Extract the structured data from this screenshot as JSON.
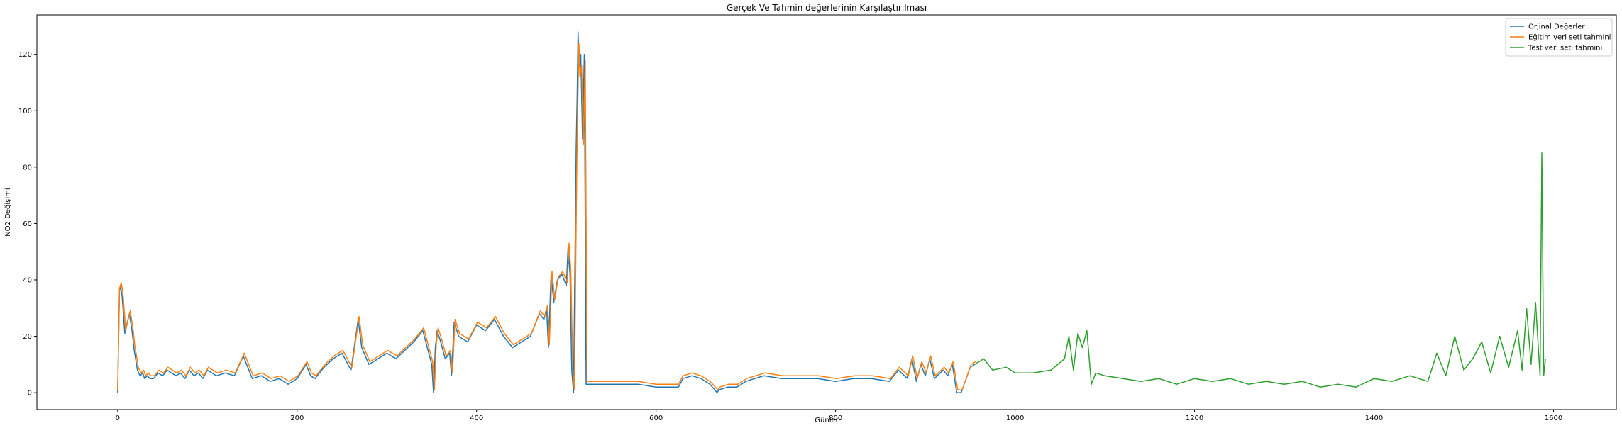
{
  "chart_data": {
    "type": "line",
    "title": "Gerçek Ve Tahmin değerlerinin Karşılaştırılması",
    "xlabel": "Günler",
    "ylabel": "NO2 Değişimi",
    "xlim": [
      -90,
      1670
    ],
    "ylim": [
      -6,
      134
    ],
    "xticks": [
      0,
      200,
      400,
      600,
      800,
      1000,
      1200,
      1400,
      1600
    ],
    "yticks": [
      0,
      20,
      40,
      60,
      80,
      100,
      120
    ],
    "grid": false,
    "legend_position": "top-right",
    "series": [
      {
        "name": "Orjinal Değerler",
        "color": "#1f77b4",
        "x": [
          0,
          2,
          3,
          5,
          8,
          10,
          13,
          16,
          18,
          20,
          22,
          25,
          28,
          30,
          33,
          36,
          40,
          45,
          50,
          55,
          60,
          65,
          70,
          75,
          80,
          85,
          90,
          95,
          100,
          110,
          120,
          130,
          140,
          145,
          150,
          160,
          170,
          180,
          190,
          200,
          210,
          215,
          220,
          230,
          240,
          250,
          260,
          268,
          272,
          280,
          290,
          300,
          310,
          320,
          330,
          340,
          345,
          350,
          352,
          354,
          356,
          360,
          365,
          370,
          372,
          375,
          380,
          390,
          400,
          410,
          420,
          430,
          440,
          450,
          460,
          470,
          475,
          478,
          480,
          483,
          486,
          490,
          495,
          500,
          502,
          504,
          506,
          508,
          510,
          511,
          512,
          513,
          514,
          516,
          518,
          520,
          522,
          530,
          580,
          600,
          620,
          625,
          630,
          640,
          650,
          660,
          668,
          670,
          680,
          690,
          700,
          710,
          720,
          740,
          760,
          780,
          800,
          820,
          840,
          860,
          870,
          880,
          885,
          890,
          895,
          900,
          905,
          910,
          920,
          925,
          930,
          935,
          940,
          950,
          955
        ],
        "y": [
          0,
          36,
          38,
          34,
          21,
          24,
          28,
          22,
          16,
          12,
          8,
          6,
          7,
          5,
          6,
          5,
          5,
          7,
          6,
          8,
          7,
          6,
          7,
          5,
          8,
          6,
          7,
          5,
          8,
          6,
          7,
          6,
          13,
          9,
          5,
          6,
          4,
          5,
          3,
          5,
          10,
          6,
          5,
          9,
          12,
          14,
          8,
          26,
          16,
          10,
          12,
          14,
          12,
          15,
          18,
          22,
          16,
          10,
          0,
          16,
          22,
          18,
          12,
          14,
          6,
          25,
          20,
          18,
          24,
          22,
          26,
          20,
          16,
          18,
          20,
          28,
          26,
          30,
          16,
          42,
          32,
          40,
          42,
          38,
          52,
          42,
          8,
          0,
          60,
          88,
          105,
          128,
          118,
          120,
          90,
          120,
          3,
          3,
          3,
          2,
          2,
          2,
          5,
          6,
          5,
          3,
          0,
          1,
          2,
          2,
          4,
          5,
          6,
          5,
          5,
          5,
          4,
          5,
          5,
          4,
          8,
          5,
          12,
          4,
          10,
          6,
          12,
          5,
          8,
          6,
          10,
          0,
          0,
          9,
          10
        ]
      },
      {
        "name": "Eğitim veri seti tahmini",
        "color": "#ff7f0e",
        "x": [
          0,
          2,
          4,
          6,
          9,
          11,
          14,
          17,
          19,
          21,
          23,
          26,
          29,
          31,
          34,
          37,
          41,
          46,
          51,
          56,
          61,
          66,
          71,
          76,
          81,
          86,
          91,
          96,
          101,
          111,
          121,
          131,
          141,
          146,
          151,
          161,
          171,
          181,
          191,
          201,
          211,
          216,
          221,
          231,
          241,
          251,
          261,
          269,
          273,
          281,
          291,
          301,
          311,
          321,
          331,
          341,
          346,
          351,
          353,
          355,
          357,
          361,
          366,
          371,
          373,
          376,
          381,
          391,
          401,
          411,
          421,
          431,
          441,
          451,
          461,
          471,
          476,
          479,
          481,
          484,
          487,
          491,
          496,
          501,
          503,
          505,
          507,
          509,
          511,
          512,
          513,
          514,
          515,
          517,
          519,
          521,
          523,
          530,
          580,
          600,
          620,
          625,
          630,
          640,
          650,
          660,
          669,
          671,
          681,
          691,
          701,
          711,
          721,
          741,
          761,
          781,
          801,
          821,
          841,
          861,
          871,
          881,
          886,
          891,
          896,
          901,
          906,
          911,
          921,
          926,
          931,
          936,
          941,
          951,
          956
        ],
        "y": [
          1,
          37,
          39,
          35,
          22,
          25,
          29,
          23,
          17,
          13,
          9,
          7,
          8,
          6,
          7,
          6,
          6,
          8,
          7,
          9,
          8,
          7,
          8,
          6,
          9,
          7,
          8,
          6,
          9,
          7,
          8,
          7,
          14,
          10,
          6,
          7,
          5,
          6,
          4,
          6,
          11,
          7,
          6,
          10,
          13,
          15,
          9,
          27,
          17,
          11,
          13,
          15,
          13,
          16,
          19,
          23,
          17,
          11,
          1,
          17,
          23,
          19,
          13,
          15,
          7,
          26,
          21,
          19,
          25,
          23,
          27,
          21,
          17,
          19,
          21,
          29,
          27,
          31,
          17,
          43,
          33,
          41,
          43,
          39,
          53,
          43,
          9,
          1,
          62,
          90,
          108,
          124,
          112,
          116,
          88,
          118,
          4,
          4,
          4,
          3,
          3,
          3,
          6,
          7,
          6,
          4,
          1,
          2,
          3,
          3,
          5,
          6,
          7,
          6,
          6,
          6,
          5,
          6,
          6,
          5,
          9,
          6,
          13,
          5,
          11,
          7,
          13,
          6,
          9,
          7,
          11,
          1,
          1,
          10,
          11
        ]
      },
      {
        "name": "Test veri seti tahmini",
        "color": "#2ca02c",
        "x": [
          955,
          965,
          975,
          990,
          1000,
          1020,
          1040,
          1055,
          1060,
          1065,
          1070,
          1075,
          1080,
          1085,
          1090,
          1100,
          1120,
          1140,
          1160,
          1180,
          1200,
          1220,
          1240,
          1260,
          1280,
          1300,
          1320,
          1340,
          1360,
          1380,
          1400,
          1420,
          1440,
          1460,
          1470,
          1480,
          1490,
          1500,
          1510,
          1520,
          1530,
          1540,
          1550,
          1560,
          1565,
          1570,
          1575,
          1580,
          1585,
          1587,
          1589,
          1591
        ],
        "y": [
          10,
          12,
          8,
          9,
          7,
          7,
          8,
          12,
          20,
          8,
          21,
          16,
          22,
          3,
          7,
          6,
          5,
          4,
          5,
          3,
          5,
          4,
          5,
          3,
          4,
          3,
          4,
          2,
          3,
          2,
          5,
          4,
          6,
          4,
          14,
          6,
          20,
          8,
          12,
          18,
          7,
          20,
          9,
          22,
          8,
          30,
          10,
          32,
          6,
          85,
          6,
          12
        ]
      }
    ]
  }
}
